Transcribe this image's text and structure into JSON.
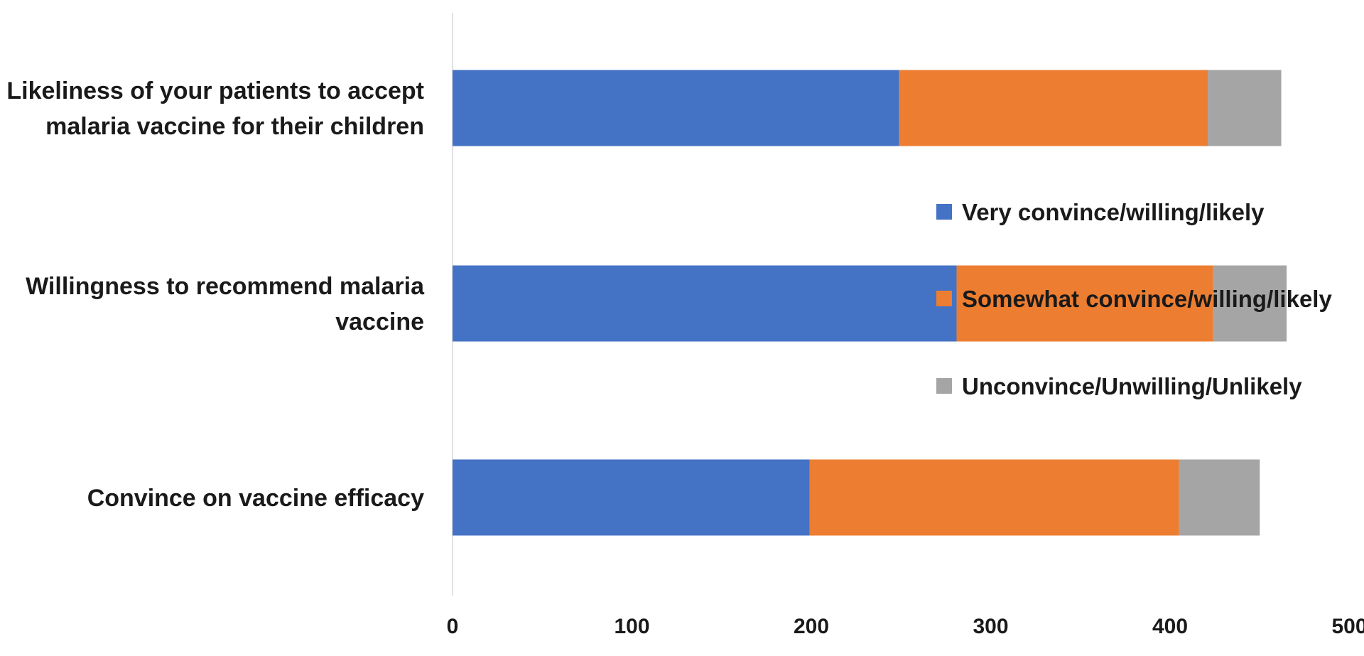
{
  "chart_data": {
    "type": "bar",
    "orientation": "horizontal",
    "stacked": true,
    "title": "",
    "xlabel": "",
    "ylabel": "",
    "xlim": [
      0,
      500
    ],
    "x_ticks": [
      0,
      100,
      200,
      300,
      400,
      500
    ],
    "grid": false,
    "legend_position": "right",
    "categories": [
      {
        "label": "Likeliness of your patients to accept malaria vaccine for their children",
        "lines": [
          "Likeliness of your patients to accept",
          "malaria vaccine for their children"
        ]
      },
      {
        "label": "Willingness to recommend malaria vaccine",
        "lines": [
          "Willingness to recommend malaria",
          "vaccine"
        ]
      },
      {
        "label": "Convince on vaccine efficacy",
        "lines": [
          "Convince on vaccine efficacy"
        ]
      }
    ],
    "series": [
      {
        "name": "Very convince/willing/likely",
        "color": "#4472C4",
        "values": [
          249,
          281,
          199
        ]
      },
      {
        "name": "Somewhat convince/willing/likely",
        "color": "#ED7D31",
        "values": [
          172,
          143,
          206
        ]
      },
      {
        "name": "Unconvince/Unwilling/Unlikely",
        "color": "#A5A5A5",
        "values": [
          41,
          41,
          45
        ]
      }
    ]
  }
}
